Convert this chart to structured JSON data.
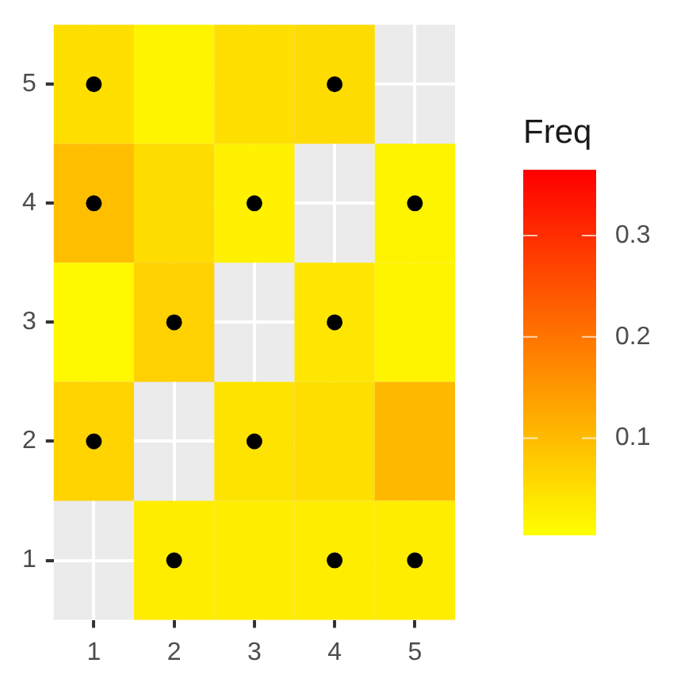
{
  "chart_data": {
    "type": "heatmap",
    "categories": [
      "1",
      "2",
      "3",
      "4",
      "5"
    ],
    "ylim": [
      0.5,
      5.5
    ],
    "yticks": [
      1,
      2,
      3,
      4,
      5
    ],
    "cells": [
      [
        0.05,
        0.02,
        0.05,
        0.055,
        null
      ],
      [
        0.095,
        0.055,
        0.025,
        null,
        0.02
      ],
      [
        0.015,
        0.07,
        null,
        0.04,
        0.02
      ],
      [
        0.065,
        null,
        0.045,
        0.05,
        0.105
      ],
      [
        null,
        0.03,
        0.03,
        0.03,
        0.03
      ]
    ],
    "clim": [
      0.005,
      0.365
    ],
    "cticks": [
      0.1,
      0.2,
      0.3
    ],
    "clabel": "Freq",
    "grid": true,
    "series": [
      {
        "type": "scatter",
        "color": "#000000",
        "x": [
          "1",
          "4",
          "1",
          "3",
          "5",
          "2",
          "4",
          "1",
          "3",
          "2",
          "4",
          "5"
        ],
        "values": [
          5,
          5,
          4,
          4,
          4,
          3,
          3,
          2,
          2,
          1,
          1,
          1
        ]
      }
    ]
  }
}
